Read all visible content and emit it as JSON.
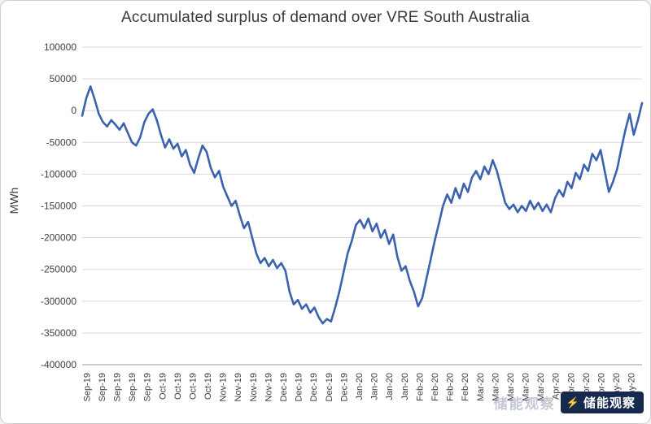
{
  "chart_data": {
    "type": "line",
    "title": "Accumulated surplus of demand over VRE South Australia",
    "xlabel": "",
    "ylabel": "MWh",
    "ylim": [
      -400000,
      100000
    ],
    "ytick_step": 50000,
    "grid": true,
    "legend": "none",
    "line_color": "#3a62ae",
    "ytick_labels": [
      "100000",
      "50000",
      "0",
      "-50000",
      "-100000",
      "-150000",
      "-200000",
      "-250000",
      "-300000",
      "-350000",
      "-400000"
    ],
    "x_tick_labels": [
      "Sep-19",
      "Sep-19",
      "Sep-19",
      "Sep-19",
      "Sep-19",
      "Oct-19",
      "Oct-19",
      "Oct-19",
      "Oct-19",
      "Nov-19",
      "Nov-19",
      "Nov-19",
      "Nov-19",
      "Dec-19",
      "Dec-19",
      "Dec-19",
      "Dec-19",
      "Dec-19",
      "Jan-20",
      "Jan-20",
      "Jan-20",
      "Jan-20",
      "Feb-20",
      "Feb-20",
      "Feb-20",
      "Feb-20",
      "Mar-20",
      "Mar-20",
      "Mar-20",
      "Mar-20",
      "Mar-20",
      "Apr-20",
      "Apr-20",
      "Apr-20",
      "Apr-20",
      "May-20",
      "May-20"
    ],
    "values": [
      -8000,
      20000,
      38000,
      18000,
      -5000,
      -18000,
      -25000,
      -15000,
      -22000,
      -30000,
      -20000,
      -35000,
      -50000,
      -55000,
      -42000,
      -18000,
      -5000,
      2000,
      -15000,
      -38000,
      -58000,
      -45000,
      -60000,
      -52000,
      -72000,
      -62000,
      -85000,
      -98000,
      -75000,
      -55000,
      -65000,
      -90000,
      -105000,
      -95000,
      -120000,
      -135000,
      -150000,
      -142000,
      -165000,
      -185000,
      -175000,
      -200000,
      -225000,
      -240000,
      -232000,
      -245000,
      -235000,
      -248000,
      -240000,
      -252000,
      -285000,
      -305000,
      -298000,
      -312000,
      -305000,
      -318000,
      -310000,
      -325000,
      -335000,
      -328000,
      -332000,
      -310000,
      -285000,
      -255000,
      -225000,
      -205000,
      -180000,
      -172000,
      -185000,
      -170000,
      -190000,
      -178000,
      -200000,
      -188000,
      -210000,
      -195000,
      -230000,
      -252000,
      -245000,
      -268000,
      -285000,
      -308000,
      -295000,
      -265000,
      -235000,
      -205000,
      -178000,
      -150000,
      -132000,
      -145000,
      -122000,
      -138000,
      -115000,
      -128000,
      -105000,
      -95000,
      -108000,
      -88000,
      -100000,
      -78000,
      -95000,
      -120000,
      -145000,
      -155000,
      -148000,
      -160000,
      -150000,
      -158000,
      -142000,
      -155000,
      -145000,
      -158000,
      -148000,
      -160000,
      -138000,
      -125000,
      -135000,
      -112000,
      -122000,
      -98000,
      -108000,
      -85000,
      -95000,
      -68000,
      -78000,
      -62000,
      -95000,
      -128000,
      -112000,
      -92000,
      -60000,
      -30000,
      -5000,
      -38000,
      -15000,
      12000
    ]
  },
  "watermark": {
    "ghost_text": "储能观察",
    "badge_text": "储能观察",
    "logo_icon": "⚡",
    "badge_color": "#16294f"
  }
}
